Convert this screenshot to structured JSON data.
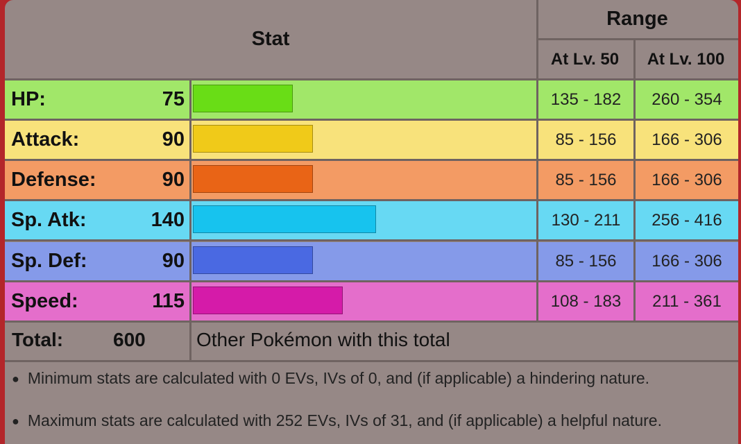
{
  "header": {
    "stat": "Stat",
    "range": "Range",
    "lv50": "At Lv. 50",
    "lv100": "At Lv. 100"
  },
  "stats": [
    {
      "label": "HP:",
      "value": "75",
      "lv50": "135 - 182",
      "lv100": "260 - 354",
      "row_color": "#a1e769",
      "bar_color": "#69dd16",
      "bar_fraction": 0.3
    },
    {
      "label": "Attack:",
      "value": "90",
      "lv50": "85 - 156",
      "lv100": "166 - 306",
      "row_color": "#f8e27b",
      "bar_color": "#f0ca19",
      "bar_fraction": 0.36
    },
    {
      "label": "Defense:",
      "value": "90",
      "lv50": "85 - 156",
      "lv100": "166 - 306",
      "row_color": "#f39b64",
      "bar_color": "#e96416",
      "bar_fraction": 0.36
    },
    {
      "label": "Sp. Atk:",
      "value": "140",
      "lv50": "130 - 211",
      "lv100": "256 - 416",
      "row_color": "#67d9f3",
      "bar_color": "#17c3ee",
      "bar_fraction": 0.55
    },
    {
      "label": "Sp. Def:",
      "value": "90",
      "lv50": "85 - 156",
      "lv100": "166 - 306",
      "row_color": "#859ae9",
      "bar_color": "#4a69e2",
      "bar_fraction": 0.36
    },
    {
      "label": "Speed:",
      "value": "115",
      "lv50": "108 - 183",
      "lv100": "211 - 361",
      "row_color": "#e46ecb",
      "bar_color": "#d51ba9",
      "bar_fraction": 0.45
    }
  ],
  "total": {
    "label": "Total:",
    "value": "600",
    "link": "Other Pokémon with this total"
  },
  "notes": {
    "min": "Minimum stats are calculated with 0 EVs, IVs of 0, and (if applicable) a hindering nature.",
    "max": "Maximum stats are calculated with 252 EVs, IVs of 31, and (if applicable) a helpful nature."
  },
  "colors": {
    "frame_border": "#b3262a",
    "header_bg": "#968886"
  }
}
